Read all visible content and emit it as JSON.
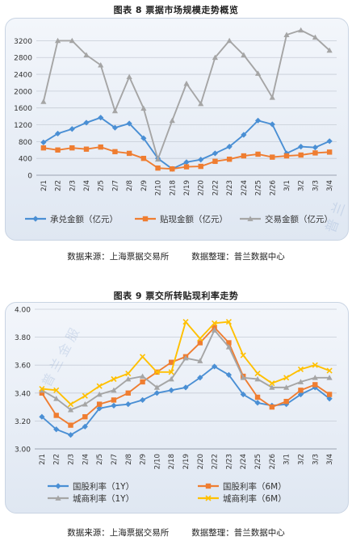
{
  "chart_data": [
    {
      "type": "line",
      "title": "图表 8  票据市场规模走势概览",
      "categories": [
        "2/1",
        "2/2",
        "2/3",
        "2/4",
        "2/5",
        "2/7",
        "2/8",
        "2/9",
        "2/10",
        "2/18",
        "2/19",
        "2/20",
        "2/22",
        "2/23",
        "2/24",
        "2/25",
        "2/26",
        "3/1",
        "3/2",
        "3/3",
        "3/4"
      ],
      "ylim": [
        0,
        3400
      ],
      "yticks": [
        0,
        400,
        800,
        1200,
        1600,
        2000,
        2400,
        2800,
        3200
      ],
      "grid": true,
      "legend": "bottom",
      "series": [
        {
          "name": "承兑金额（亿元）",
          "color": "#4a8fd4",
          "marker": "diamond",
          "values": [
            780,
            990,
            1100,
            1250,
            1370,
            1130,
            1230,
            880,
            400,
            150,
            310,
            370,
            520,
            680,
            960,
            1300,
            1210,
            520,
            680,
            660,
            810
          ]
        },
        {
          "name": "贴现金额（亿元）",
          "color": "#ef7d31",
          "marker": "square",
          "values": [
            650,
            600,
            650,
            620,
            670,
            560,
            520,
            400,
            170,
            150,
            200,
            210,
            330,
            380,
            460,
            500,
            430,
            460,
            480,
            530,
            550
          ]
        },
        {
          "name": "交易金额（亿元）",
          "color": "#a5a5a5",
          "marker": "triangle",
          "values": [
            1750,
            3200,
            3200,
            2860,
            2620,
            1530,
            2340,
            1590,
            380,
            1300,
            2180,
            1700,
            2800,
            3200,
            2860,
            2420,
            1850,
            3340,
            3450,
            3280,
            2970
          ]
        }
      ]
    },
    {
      "type": "line",
      "title": "图表 9  票交所转贴现利率走势",
      "categories": [
        "2/1",
        "2/2",
        "2/3",
        "2/4",
        "2/5",
        "2/7",
        "2/8",
        "2/9",
        "2/10",
        "2/18",
        "2/19",
        "2/20",
        "2/22",
        "2/23",
        "2/24",
        "2/25",
        "2/26",
        "3/1",
        "3/2",
        "3/3",
        "3/4"
      ],
      "ylim": [
        3.0,
        4.0
      ],
      "yticks": [
        "3.00",
        "3.20",
        "3.40",
        "3.60",
        "3.80",
        "4.00"
      ],
      "grid": true,
      "legend": "bottom",
      "series": [
        {
          "name": "国股利率（1Y）",
          "color": "#4a8fd4",
          "marker": "diamond",
          "values": [
            3.23,
            3.14,
            3.1,
            3.16,
            3.29,
            3.31,
            3.32,
            3.35,
            3.4,
            3.42,
            3.44,
            3.51,
            3.59,
            3.53,
            3.39,
            3.33,
            3.31,
            3.32,
            3.39,
            3.44,
            3.36
          ]
        },
        {
          "name": "国股利率（6M）",
          "color": "#ef7d31",
          "marker": "square",
          "values": [
            3.4,
            3.24,
            3.17,
            3.23,
            3.32,
            3.35,
            3.4,
            3.48,
            3.55,
            3.62,
            3.66,
            3.76,
            3.87,
            3.76,
            3.52,
            3.37,
            3.3,
            3.34,
            3.42,
            3.46,
            3.39
          ]
        },
        {
          "name": "城商利率（1Y）",
          "color": "#a5a5a5",
          "marker": "triangle",
          "values": [
            3.42,
            3.36,
            3.28,
            3.32,
            3.39,
            3.42,
            3.5,
            3.52,
            3.44,
            3.5,
            3.65,
            3.63,
            3.85,
            3.73,
            3.51,
            3.5,
            3.44,
            3.44,
            3.48,
            3.51,
            3.51
          ]
        },
        {
          "name": "城商利率（6M）",
          "color": "#ffc000",
          "marker": "cross",
          "values": [
            3.43,
            3.42,
            3.32,
            3.38,
            3.45,
            3.5,
            3.54,
            3.66,
            3.55,
            3.55,
            3.91,
            3.79,
            3.9,
            3.91,
            3.67,
            3.54,
            3.47,
            3.51,
            3.57,
            3.6,
            3.56
          ]
        }
      ]
    }
  ],
  "figure8": {
    "source": "数据来源：上海票据交易所",
    "compiler": "数据整理：普兰数据中心"
  },
  "figure9": {
    "source": "数据来源：上海票据交易所",
    "compiler": "数据整理：普兰数据中心"
  },
  "watermark": "普 兰 金 服"
}
